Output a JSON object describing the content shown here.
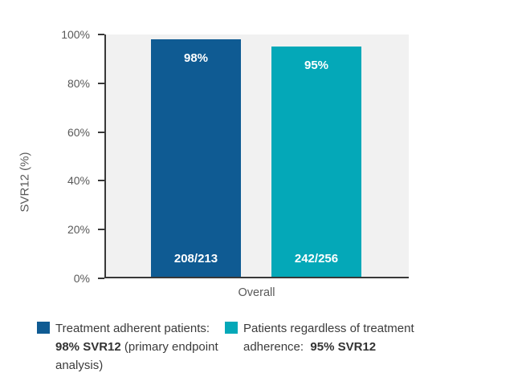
{
  "chart_data": {
    "type": "bar",
    "title": "",
    "categories": [
      "Overall"
    ],
    "xlabel": "Overall",
    "ylabel": "SVR12 (%)",
    "ylim": [
      0,
      100
    ],
    "grid": false,
    "legend_position": "bottom",
    "plot_background": "#f1f1f1",
    "axis_color": "#383838",
    "tick_label_color": "#595959",
    "yticks": [
      {
        "label": "0%",
        "value": 0
      },
      {
        "label": "20%",
        "value": 20
      },
      {
        "label": "40%",
        "value": 40
      },
      {
        "label": "60%",
        "value": 60
      },
      {
        "label": "80%",
        "value": 80
      },
      {
        "label": "100%",
        "value": 100
      }
    ],
    "series": [
      {
        "name": "Treatment adherent patients",
        "value": 98,
        "bar_label": "98%",
        "fraction_label": "208/213",
        "color": "#0f5b93"
      },
      {
        "name": "Patients regardless of treatment adherence",
        "value": 95,
        "bar_label": "95%",
        "fraction_label": "242/256",
        "color": "#04a8b8"
      }
    ]
  },
  "legend": {
    "items": [
      {
        "prefix": "Treatment adherent patients: ",
        "bold": "98% SVR12",
        "suffix": " (primary endpoint analysis)"
      },
      {
        "prefix": "Patients regardless of treatment adherence:  ",
        "bold": "95% SVR12",
        "suffix": ""
      }
    ]
  }
}
